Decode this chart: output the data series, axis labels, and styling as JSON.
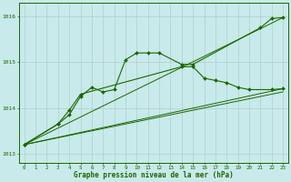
{
  "title": "Graphe pression niveau de la mer (hPa)",
  "background_color": "#c8eaea",
  "grid_color": "#b0d0d0",
  "ylim": [
    1012.8,
    1016.3
  ],
  "xlim": [
    -0.5,
    23.5
  ],
  "yticks": [
    1013,
    1014,
    1015,
    1016
  ],
  "xticks": [
    0,
    1,
    2,
    3,
    4,
    5,
    6,
    7,
    8,
    9,
    10,
    11,
    12,
    13,
    14,
    15,
    16,
    17,
    18,
    19,
    20,
    21,
    22,
    23
  ],
  "line_color": "#1a6600",
  "marker_color": "#1a6600",
  "series": {
    "line1_x": [
      0,
      3,
      4,
      5,
      6,
      7,
      8,
      9,
      10,
      11,
      12,
      14,
      15,
      21,
      22,
      23
    ],
    "line1_y": [
      1013.2,
      1013.65,
      1013.85,
      1014.25,
      1014.45,
      1014.35,
      1014.4,
      1015.05,
      1015.2,
      1015.2,
      1015.2,
      1014.95,
      1014.95,
      1015.75,
      1015.95,
      1015.97
    ],
    "line2_x": [
      0,
      3,
      4,
      5,
      14,
      15,
      16,
      17,
      18,
      19,
      20,
      22,
      23
    ],
    "line2_y": [
      1013.2,
      1013.65,
      1013.95,
      1014.3,
      1014.9,
      1014.9,
      1014.65,
      1014.6,
      1014.55,
      1014.45,
      1014.4,
      1014.4,
      1014.42
    ],
    "line3_x": [
      0,
      23
    ],
    "line3_y": [
      1013.2,
      1015.97
    ],
    "line4_x": [
      0,
      23
    ],
    "line4_y": [
      1013.2,
      1014.42
    ],
    "line5_x": [
      0,
      23
    ],
    "line5_y": [
      1013.2,
      1014.35
    ]
  }
}
